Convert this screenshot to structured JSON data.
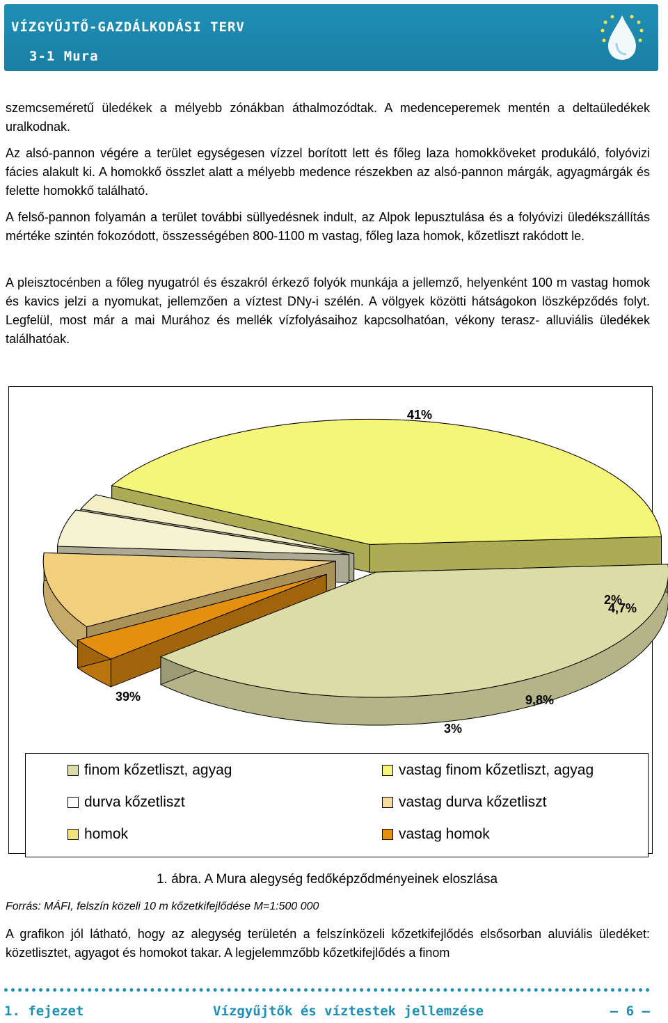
{
  "header": {
    "title": "VÍZGYŰJTŐ-GAZDÁLKODÁSI TERV",
    "subtitle": "3-1 Mura"
  },
  "body": {
    "paragraphs": [
      "szemcseméretű üledékek a mélyebb zónákban áthalmozódtak. A medenceperemek mentén a deltaüledékek uralkodnak.",
      "Az alsó-pannon végére a terület egységesen vízzel borított lett és főleg laza homokköveket produkáló, folyóvizi fácies alakult ki. A homokkő összlet alatt a mélyebb medence részekben az alsó-pannon márgák, agyagmárgák és felette homokkő található.",
      "A felső-pannon folyamán a terület további süllyedésnek indult, az Alpok lepusztulása és a folyóvizi üledékszállítás mértéke szintén fokozódott, összességében 800-1100 m vastag, főleg laza homok, kőzetliszt rakódott le.",
      "A pleisztocénben a főleg nyugatról és északról érkező folyók munkája a jellemző, helyenként 100 m vastag homok és kavics jelzi a nyomukat, jellemzően a víztest DNy-i szélén. A völgyek közötti hátságokon löszképződés folyt. Legfelül, most már a mai Murához és mellék vízfolyásaihoz kapcsolhatóan, vékony terasz- alluviális üledékek találhatóak.",
      "A grafikon jól látható, hogy az alegység területén a felszínközeli kőzetkifejlődés elsősorban aluviális üledéket: közetlisztet, agyagot és homokot takar. A legjelemmzőbb kőzetkifejlődés a finom"
    ]
  },
  "chart_data": {
    "type": "pie",
    "style": "3d-exploded",
    "series": [
      {
        "name": "vastag finom kőzetliszt, agyag",
        "value": 41,
        "label": "41%",
        "color": "#f5f57a"
      },
      {
        "name": "vastag durva kőzetliszt",
        "value": 2,
        "label": "2%",
        "color": "#f3f0c6"
      },
      {
        "name": "durva kőzetliszt",
        "value": 4.7,
        "label": "4,7%",
        "color": "#f6f3d2"
      },
      {
        "name": "vastag durva kőzetliszt (2)",
        "value": 9.8,
        "label": "9,8%",
        "color": "#f2cf7e"
      },
      {
        "name": "vastag homok",
        "value": 3,
        "label": "3%",
        "color": "#e58f0f"
      },
      {
        "name": "finom kőzetliszt, agyag",
        "value": 39,
        "label": "39%",
        "color": "#dcdca6"
      }
    ],
    "legend": [
      {
        "label": "finom kőzetliszt, agyag",
        "color": "#dcdca6"
      },
      {
        "label": "vastag finom kőzetliszt, agyag",
        "color": "#f5f57a"
      },
      {
        "label": "durva kőzetliszt",
        "color": "#ffffff"
      },
      {
        "label": "vastag durva kőzetliszt",
        "color": "#f8d9a0"
      },
      {
        "label": "homok",
        "color": "#f3e27a"
      },
      {
        "label": "vastag homok",
        "color": "#e58f0f"
      }
    ]
  },
  "figure": {
    "caption": "1. ábra. A Mura alegység fedőképződményeinek eloszlása",
    "source": "Forrás: MÁFI, felszín közeli 10 m kőzetkifejlődése M=1:500 000"
  },
  "footer": {
    "chapter": "1. fejezet",
    "section": "Vízgyűjtők és víztestek jellemzése",
    "page": "– 6 –"
  }
}
